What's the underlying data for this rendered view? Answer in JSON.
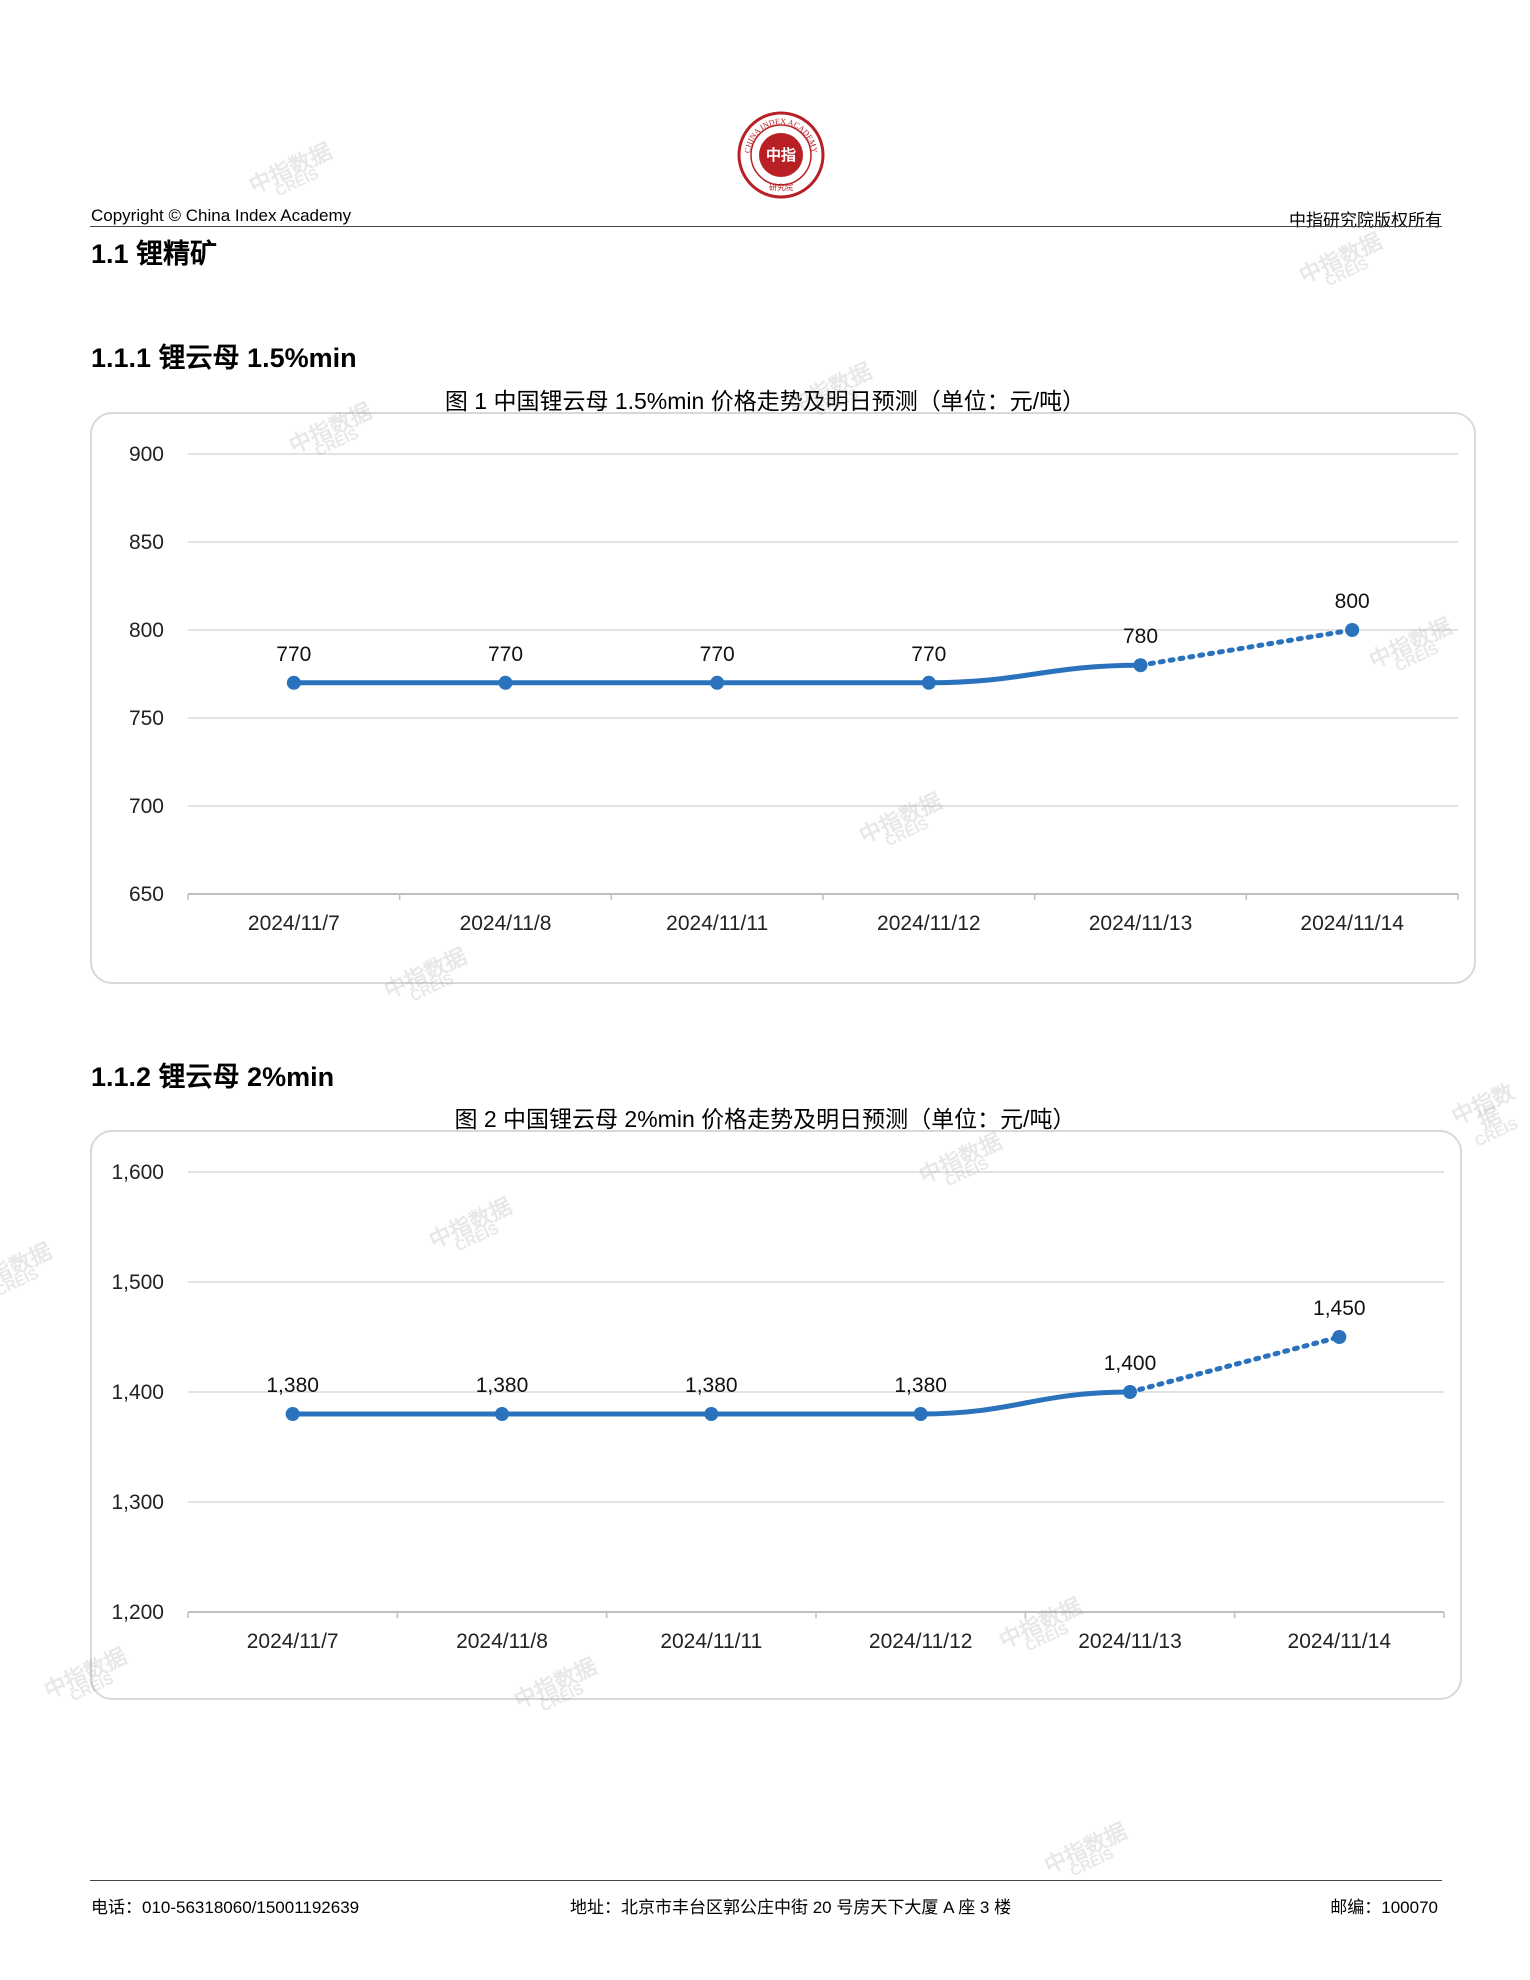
{
  "header": {
    "copyright": "Copyright © China Index Academy",
    "rights": "中指研究院版权所有",
    "logo_text": "CHINA INDEX ACADEMY",
    "logo_center": "中指",
    "logo_bottom": "研究院"
  },
  "section_title": "1.1 锂精矿",
  "sections": [
    {
      "heading": "1.1.1 锂云母 1.5%min",
      "chart_title": "图 1 中国锂云母 1.5%min 价格走势及明日预测（单位：元/吨）"
    },
    {
      "heading": "1.1.2 锂云母 2%min",
      "chart_title": "图 2 中国锂云母 2%min 价格走势及明日预测（单位：元/吨）"
    }
  ],
  "chart_data": [
    {
      "type": "line",
      "title": "图 1 中国锂云母 1.5%min 价格走势及明日预测（单位：元/吨）",
      "categories": [
        "2024/11/7",
        "2024/11/8",
        "2024/11/11",
        "2024/11/12",
        "2024/11/13",
        "2024/11/14"
      ],
      "values": [
        770,
        770,
        770,
        770,
        780,
        800
      ],
      "value_labels": [
        "770",
        "770",
        "770",
        "770",
        "780",
        "800"
      ],
      "forecast_from_index": 4,
      "ylim": [
        650,
        900
      ],
      "yticks": [
        650,
        700,
        750,
        800,
        850,
        900
      ],
      "ytick_labels": [
        "650",
        "700",
        "750",
        "800",
        "850",
        "900"
      ],
      "grid": true,
      "line_color": "#2a72bc"
    },
    {
      "type": "line",
      "title": "图 2 中国锂云母 2%min 价格走势及明日预测（单位：元/吨）",
      "categories": [
        "2024/11/7",
        "2024/11/8",
        "2024/11/11",
        "2024/11/12",
        "2024/11/13",
        "2024/11/14"
      ],
      "values": [
        1380,
        1380,
        1380,
        1380,
        1400,
        1450
      ],
      "value_labels": [
        "1,380",
        "1,380",
        "1,380",
        "1,380",
        "1,400",
        "1,450"
      ],
      "forecast_from_index": 4,
      "ylim": [
        1200,
        1600
      ],
      "yticks": [
        1200,
        1300,
        1400,
        1500,
        1600
      ],
      "ytick_labels": [
        "1,200",
        "1,300",
        "1,400",
        "1,500",
        "1,600"
      ],
      "grid": true,
      "line_color": "#2a72bc"
    }
  ],
  "footer": {
    "phone": "电话：010-56318060/15001192639",
    "address": "地址：北京市丰台区郭公庄中街 20 号房天下大厦 A 座 3 楼",
    "postcode": "邮编：100070"
  },
  "watermark": {
    "cn": "中指数据",
    "en": "CREIS"
  }
}
